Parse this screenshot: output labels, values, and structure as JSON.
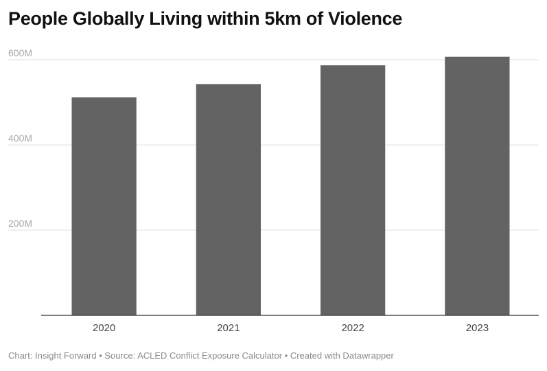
{
  "title": "People Globally Living within 5km of Violence",
  "footer": "Chart: Insight Forward • Source: ACLED Conflict Exposure Calculator • Created with Datawrapper",
  "colors": {
    "bar": "#636363",
    "grid": "#e2e2e2",
    "axis": "#333333"
  },
  "chart_data": {
    "type": "bar",
    "title": "People Globally Living within 5km of Violence",
    "xlabel": "",
    "ylabel": "",
    "categories": [
      "2020",
      "2021",
      "2022",
      "2023"
    ],
    "values": [
      512,
      543,
      587,
      607
    ],
    "value_unit": "M",
    "ylim": [
      0,
      600
    ],
    "yticks": [
      200,
      400,
      600
    ],
    "ytick_labels": [
      "200M",
      "400M",
      "600M"
    ],
    "grid": true,
    "legend": "none"
  }
}
